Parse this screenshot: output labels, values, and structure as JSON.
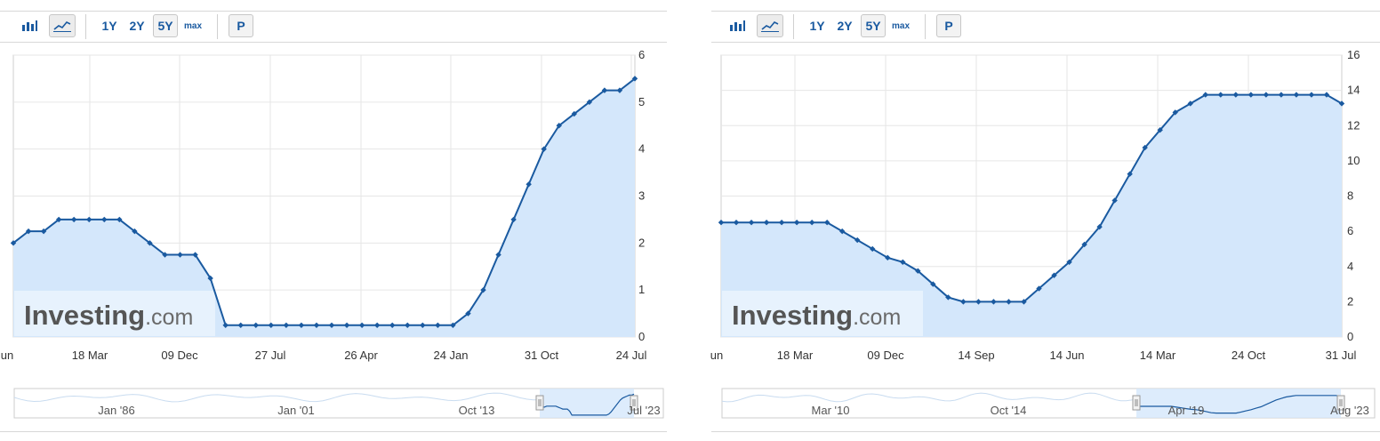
{
  "toolbar": {
    "bar_icon": "bar-chart-icon",
    "line_icon": "line-chart-icon",
    "range_1y": "1Y",
    "range_2y": "2Y",
    "range_5y": "5Y",
    "range_max": "max",
    "p_label": "P"
  },
  "watermark": {
    "brand": "Investing",
    "suffix": ".com"
  },
  "colors": {
    "line": "#1a5aa0",
    "fill": "#d4e7fb",
    "grid": "#e6e6e6",
    "accent": "#1a5aa0"
  },
  "chart_data": [
    {
      "type": "area",
      "title": "",
      "xlabel": "",
      "ylabel": "",
      "ylim": [
        0,
        6
      ],
      "yticks": [
        "0",
        "1",
        "2",
        "3",
        "4",
        "5",
        "6"
      ],
      "xticks": [
        "un",
        "18 Mar",
        "09 Dec",
        "27 Jul",
        "26 Apr",
        "24 Jan",
        "31 Oct",
        "24 Jul"
      ],
      "grid": true,
      "y_axis_side": "right",
      "values": [
        2.0,
        2.25,
        2.25,
        2.5,
        2.5,
        2.5,
        2.5,
        2.5,
        2.25,
        2.0,
        1.75,
        1.75,
        1.75,
        1.25,
        0.25,
        0.25,
        0.25,
        0.25,
        0.25,
        0.25,
        0.25,
        0.25,
        0.25,
        0.25,
        0.25,
        0.25,
        0.25,
        0.25,
        0.25,
        0.25,
        0.5,
        1.0,
        1.75,
        2.5,
        3.25,
        4.0,
        4.5,
        4.75,
        5.0,
        5.25,
        5.25,
        5.5
      ],
      "navigator": {
        "labels": [
          "Jan '86",
          "Jan '01",
          "Oct '13",
          "Jul '23"
        ]
      }
    },
    {
      "type": "area",
      "title": "",
      "xlabel": "",
      "ylabel": "",
      "ylim": [
        0,
        16
      ],
      "yticks": [
        "0",
        "2",
        "4",
        "6",
        "8",
        "10",
        "12",
        "14",
        "16"
      ],
      "xticks": [
        "un",
        "18 Mar",
        "09 Dec",
        "14 Sep",
        "14 Jun",
        "14 Mar",
        "24 Oct",
        "31 Jul"
      ],
      "grid": true,
      "y_axis_side": "right",
      "values": [
        6.5,
        6.5,
        6.5,
        6.5,
        6.5,
        6.5,
        6.5,
        6.5,
        6.0,
        5.5,
        5.0,
        4.5,
        4.25,
        3.75,
        3.0,
        2.25,
        2.0,
        2.0,
        2.0,
        2.0,
        2.0,
        2.75,
        3.5,
        4.25,
        5.25,
        6.25,
        7.75,
        9.25,
        10.75,
        11.75,
        12.75,
        13.25,
        13.75,
        13.75,
        13.75,
        13.75,
        13.75,
        13.75,
        13.75,
        13.75,
        13.75,
        13.25
      ],
      "navigator": {
        "labels": [
          "Mar '10",
          "Oct '14",
          "Apr '19",
          "Aug '23"
        ]
      }
    }
  ]
}
